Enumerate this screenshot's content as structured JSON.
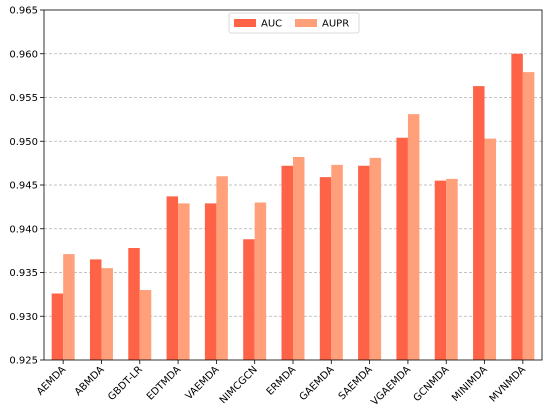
{
  "chart_data": {
    "type": "bar",
    "categories": [
      "AEMDA",
      "ABMDA",
      "GBDT-LR",
      "EDTMDA",
      "VAEMDA",
      "NIMCGCN",
      "ERMDA",
      "GAEMDA",
      "SAEMDA",
      "VGAEMDA",
      "GCNMDA",
      "MINIMDA",
      "MVNMDA"
    ],
    "series": [
      {
        "name": "AUC",
        "color": "#ff6347",
        "values": [
          0.9326,
          0.9365,
          0.9378,
          0.9437,
          0.9429,
          0.9388,
          0.9472,
          0.9459,
          0.9472,
          0.9504,
          0.9455,
          0.9563,
          0.96
        ]
      },
      {
        "name": "AUPR",
        "color": "#ffa07a",
        "values": [
          0.9371,
          0.9355,
          0.933,
          0.9429,
          0.946,
          0.943,
          0.9482,
          0.9473,
          0.9481,
          0.9531,
          0.9457,
          0.9503,
          0.9579
        ]
      }
    ],
    "ylim": [
      0.925,
      0.965
    ],
    "yticks": [
      "0.925",
      "0.930",
      "0.935",
      "0.940",
      "0.945",
      "0.950",
      "0.955",
      "0.960",
      "0.965"
    ],
    "grid": "y",
    "legend_position": "top-center",
    "title": "",
    "xlabel": "",
    "ylabel": ""
  }
}
